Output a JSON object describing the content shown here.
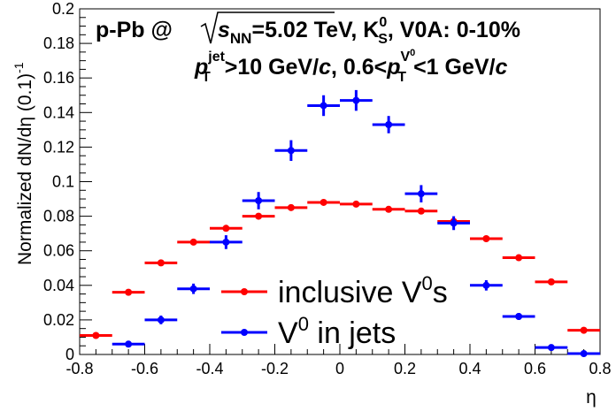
{
  "chart_data": {
    "type": "scatter",
    "xlabel": "η",
    "ylabel": "Normalized dN/dη (0.1)",
    "ylabel_exponent": "-1",
    "xlim": [
      -0.8,
      0.8
    ],
    "ylim": [
      0,
      0.2
    ],
    "x_ticks": [
      "-0.8",
      "-0.6",
      "-0.4",
      "-0.2",
      "0",
      "0.2",
      "0.4",
      "0.6",
      "0.8"
    ],
    "y_ticks": [
      "0",
      "0.02",
      "0.04",
      "0.06",
      "0.08",
      "0.1",
      "0.12",
      "0.14",
      "0.16",
      "0.18",
      "0.2"
    ],
    "bin_half_width": 0.05,
    "annotation_line1": {
      "system": "p-Pb @",
      "energy_var": "s",
      "energy_sub": "NN",
      "energy_value": "=5.02 TeV, K",
      "particle_sup": "0",
      "particle_sub": "S",
      "rest": ", V0A: 0-10%"
    },
    "annotation_line2": {
      "jet_var": "p",
      "jet_sup": "jet",
      "jet_sub": "T",
      "jet_cut": ">10 GeV/",
      "unit_c": "c",
      "range_start": ", 0.6<",
      "v0_var": "p",
      "v0_sup": "V",
      "v0_sup_sup": "0",
      "v0_sub": "T",
      "range_end": "<1 GeV/",
      "unit_c2": "c"
    },
    "series": [
      {
        "name": "inclusive V",
        "name_sup": "0",
        "name_suffix": "s",
        "color": "#ff0000",
        "x": [
          -0.75,
          -0.65,
          -0.55,
          -0.45,
          -0.35,
          -0.25,
          -0.15,
          -0.05,
          0.05,
          0.15,
          0.25,
          0.35,
          0.45,
          0.55,
          0.65,
          0.75
        ],
        "y": [
          0.011,
          0.036,
          0.053,
          0.065,
          0.073,
          0.08,
          0.085,
          0.088,
          0.087,
          0.084,
          0.083,
          0.077,
          0.067,
          0.056,
          0.042,
          0.014
        ],
        "err": [
          0.0005,
          0.0005,
          0.0005,
          0.0005,
          0.0005,
          0.0005,
          0.0005,
          0.0005,
          0.0005,
          0.0005,
          0.0005,
          0.0005,
          0.0005,
          0.0005,
          0.0005,
          0.0005
        ]
      },
      {
        "name": "V",
        "name_sup": "0",
        "name_suffix": " in jets",
        "color": "#0000ff",
        "x": [
          -0.65,
          -0.55,
          -0.45,
          -0.35,
          -0.25,
          -0.15,
          -0.05,
          0.05,
          0.15,
          0.25,
          0.35,
          0.45,
          0.55,
          0.65,
          0.75
        ],
        "y": [
          0.006,
          0.02,
          0.038,
          0.065,
          0.089,
          0.118,
          0.144,
          0.147,
          0.133,
          0.093,
          0.076,
          0.04,
          0.022,
          0.004,
          0.0005
        ],
        "err": [
          0.0015,
          0.0025,
          0.003,
          0.004,
          0.005,
          0.006,
          0.006,
          0.006,
          0.005,
          0.005,
          0.004,
          0.003,
          0.002,
          0.0015,
          0.001
        ]
      }
    ]
  }
}
